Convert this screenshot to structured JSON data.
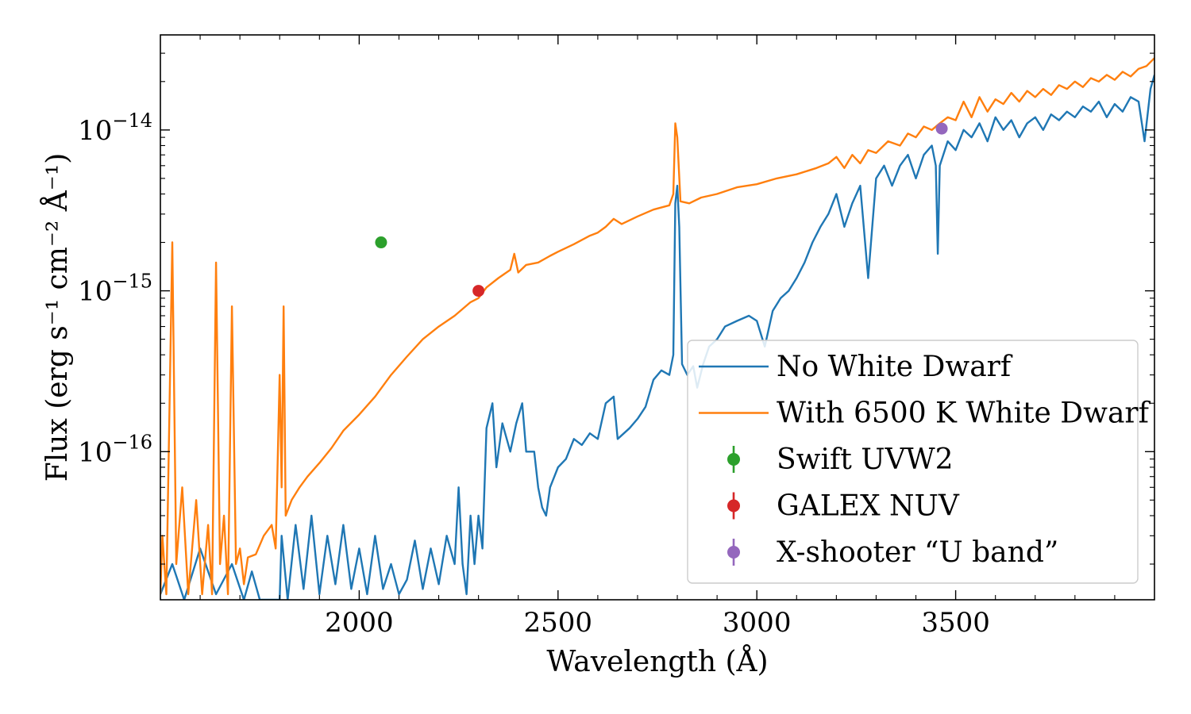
{
  "chart_data": {
    "type": "line",
    "xlabel": "Wavelength (Å)",
    "ylabel": "Flux (erg s⁻¹ cm⁻² Å⁻¹)",
    "xlim": [
      1500,
      4000
    ],
    "ylim": [
      1.2e-17,
      3.9e-14
    ],
    "yscale": "log",
    "grid": false,
    "legend_position": "lower right",
    "x_ticks": [
      {
        "value": 2000,
        "label": "2000"
      },
      {
        "value": 2500,
        "label": "2500"
      },
      {
        "value": 3000,
        "label": "3000"
      },
      {
        "value": 3500,
        "label": "3500"
      }
    ],
    "y_ticks": [
      {
        "value": 1e-16,
        "base": "10",
        "exp": "−16"
      },
      {
        "value": 1e-15,
        "base": "10",
        "exp": "−15"
      },
      {
        "value": 1e-14,
        "base": "10",
        "exp": "−14"
      }
    ],
    "series": [
      {
        "name": "No White Dwarf",
        "color": "#1f77b4",
        "kind": "line",
        "points": [
          [
            1500,
            1.3e-17
          ],
          [
            1530,
            2e-17
          ],
          [
            1560,
            1.2e-17
          ],
          [
            1600,
            2.5e-17
          ],
          [
            1640,
            1.3e-17
          ],
          [
            1680,
            2e-17
          ],
          [
            1710,
            1.2e-17
          ],
          [
            1730,
            1.8e-17
          ],
          [
            1750,
            1.2e-17
          ],
          [
            1800,
            1.2e-17
          ],
          [
            1805,
            3e-17
          ],
          [
            1820,
            1.2e-17
          ],
          [
            1840,
            3.5e-17
          ],
          [
            1860,
            1.4e-17
          ],
          [
            1880,
            4e-17
          ],
          [
            1900,
            1.3e-17
          ],
          [
            1920,
            3e-17
          ],
          [
            1940,
            1.5e-17
          ],
          [
            1960,
            3.5e-17
          ],
          [
            1980,
            1.4e-17
          ],
          [
            2000,
            2.5e-17
          ],
          [
            2020,
            1.3e-17
          ],
          [
            2040,
            3e-17
          ],
          [
            2060,
            1.4e-17
          ],
          [
            2080,
            2e-17
          ],
          [
            2100,
            1.3e-17
          ],
          [
            2120,
            1.6e-17
          ],
          [
            2140,
            2.8e-17
          ],
          [
            2160,
            1.4e-17
          ],
          [
            2180,
            2.5e-17
          ],
          [
            2200,
            1.5e-17
          ],
          [
            2220,
            3e-17
          ],
          [
            2240,
            2e-17
          ],
          [
            2250,
            6e-17
          ],
          [
            2260,
            2e-17
          ],
          [
            2270,
            1.3e-17
          ],
          [
            2280,
            4e-17
          ],
          [
            2290,
            2e-17
          ],
          [
            2300,
            4e-17
          ],
          [
            2310,
            2.5e-17
          ],
          [
            2320,
            1.4e-16
          ],
          [
            2335,
            2e-16
          ],
          [
            2345,
            8e-17
          ],
          [
            2360,
            1.5e-16
          ],
          [
            2380,
            1e-16
          ],
          [
            2395,
            1.5e-16
          ],
          [
            2410,
            2e-16
          ],
          [
            2420,
            1e-16
          ],
          [
            2440,
            1e-16
          ],
          [
            2450,
            6e-17
          ],
          [
            2460,
            4.5e-17
          ],
          [
            2470,
            4e-17
          ],
          [
            2480,
            6e-17
          ],
          [
            2500,
            8e-17
          ],
          [
            2520,
            9e-17
          ],
          [
            2540,
            1.2e-16
          ],
          [
            2560,
            1.1e-16
          ],
          [
            2580,
            1.3e-16
          ],
          [
            2600,
            1.2e-16
          ],
          [
            2620,
            2e-16
          ],
          [
            2640,
            2.2e-16
          ],
          [
            2650,
            1.2e-16
          ],
          [
            2680,
            1.4e-16
          ],
          [
            2700,
            1.6e-16
          ],
          [
            2720,
            1.9e-16
          ],
          [
            2740,
            2.8e-16
          ],
          [
            2760,
            3.2e-16
          ],
          [
            2780,
            3e-16
          ],
          [
            2790,
            4e-16
          ],
          [
            2795,
            3.5e-15
          ],
          [
            2800,
            4.5e-15
          ],
          [
            2805,
            2.5e-15
          ],
          [
            2812,
            3.5e-16
          ],
          [
            2825,
            3e-16
          ],
          [
            2840,
            3.4e-16
          ],
          [
            2850,
            2.5e-16
          ],
          [
            2865,
            3.5e-16
          ],
          [
            2880,
            4.5e-16
          ],
          [
            2900,
            5e-16
          ],
          [
            2920,
            6e-16
          ],
          [
            2950,
            6.5e-16
          ],
          [
            2980,
            7e-16
          ],
          [
            3000,
            6.5e-16
          ],
          [
            3020,
            4.5e-16
          ],
          [
            3040,
            7.5e-16
          ],
          [
            3060,
            9e-16
          ],
          [
            3080,
            1e-15
          ],
          [
            3100,
            1.2e-15
          ],
          [
            3120,
            1.5e-15
          ],
          [
            3140,
            2e-15
          ],
          [
            3160,
            2.5e-15
          ],
          [
            3180,
            3e-15
          ],
          [
            3200,
            4e-15
          ],
          [
            3220,
            2.5e-15
          ],
          [
            3240,
            3.5e-15
          ],
          [
            3260,
            4.5e-15
          ],
          [
            3280,
            1.2e-15
          ],
          [
            3300,
            5e-15
          ],
          [
            3320,
            6e-15
          ],
          [
            3340,
            4.5e-15
          ],
          [
            3360,
            6e-15
          ],
          [
            3380,
            7e-15
          ],
          [
            3400,
            5e-15
          ],
          [
            3420,
            7e-15
          ],
          [
            3440,
            8e-15
          ],
          [
            3450,
            6e-15
          ],
          [
            3455,
            1.7e-15
          ],
          [
            3460,
            6e-15
          ],
          [
            3480,
            8.5e-15
          ],
          [
            3500,
            7.5e-15
          ],
          [
            3520,
            1e-14
          ],
          [
            3540,
            9e-15
          ],
          [
            3560,
            1.1e-14
          ],
          [
            3580,
            8.5e-15
          ],
          [
            3600,
            1.2e-14
          ],
          [
            3620,
            1e-14
          ],
          [
            3640,
            1.15e-14
          ],
          [
            3660,
            9e-15
          ],
          [
            3680,
            1.1e-14
          ],
          [
            3700,
            1.2e-14
          ],
          [
            3720,
            1e-14
          ],
          [
            3740,
            1.25e-14
          ],
          [
            3760,
            1.15e-14
          ],
          [
            3780,
            1.3e-14
          ],
          [
            3800,
            1.2e-14
          ],
          [
            3820,
            1.4e-14
          ],
          [
            3840,
            1.3e-14
          ],
          [
            3860,
            1.5e-14
          ],
          [
            3880,
            1.2e-14
          ],
          [
            3900,
            1.45e-14
          ],
          [
            3920,
            1.3e-14
          ],
          [
            3940,
            1.6e-14
          ],
          [
            3960,
            1.5e-14
          ],
          [
            3975,
            8.5e-15
          ],
          [
            3990,
            1.8e-14
          ],
          [
            4000,
            2.2e-14
          ]
        ]
      },
      {
        "name": "With 6500 K White Dwarf",
        "color": "#ff7f0e",
        "kind": "line",
        "points": [
          [
            1500,
            1.3e-17
          ],
          [
            1505,
            3e-17
          ],
          [
            1515,
            1.3e-17
          ],
          [
            1530,
            2e-15
          ],
          [
            1540,
            2e-17
          ],
          [
            1555,
            6e-17
          ],
          [
            1570,
            1.3e-17
          ],
          [
            1590,
            5e-17
          ],
          [
            1605,
            1.3e-17
          ],
          [
            1620,
            3.5e-17
          ],
          [
            1630,
            1.3e-17
          ],
          [
            1640,
            1.5e-15
          ],
          [
            1650,
            2e-17
          ],
          [
            1660,
            4e-17
          ],
          [
            1670,
            1.3e-17
          ],
          [
            1680,
            8e-16
          ],
          [
            1690,
            2e-17
          ],
          [
            1700,
            2.5e-17
          ],
          [
            1710,
            1.5e-17
          ],
          [
            1720,
            2.2e-17
          ],
          [
            1740,
            2.3e-17
          ],
          [
            1760,
            3e-17
          ],
          [
            1780,
            3.5e-17
          ],
          [
            1790,
            2.5e-17
          ],
          [
            1800,
            3e-16
          ],
          [
            1805,
            6e-17
          ],
          [
            1810,
            8e-16
          ],
          [
            1815,
            4e-17
          ],
          [
            1830,
            5e-17
          ],
          [
            1850,
            6e-17
          ],
          [
            1870,
            7e-17
          ],
          [
            1900,
            8.5e-17
          ],
          [
            1930,
            1.05e-16
          ],
          [
            1960,
            1.35e-16
          ],
          [
            2000,
            1.7e-16
          ],
          [
            2040,
            2.2e-16
          ],
          [
            2080,
            3e-16
          ],
          [
            2120,
            3.9e-16
          ],
          [
            2160,
            5e-16
          ],
          [
            2200,
            6e-16
          ],
          [
            2240,
            7e-16
          ],
          [
            2280,
            8.5e-16
          ],
          [
            2300,
            9e-16
          ],
          [
            2320,
            1.05e-15
          ],
          [
            2350,
            1.2e-15
          ],
          [
            2380,
            1.35e-15
          ],
          [
            2390,
            1.7e-15
          ],
          [
            2400,
            1.3e-15
          ],
          [
            2420,
            1.45e-15
          ],
          [
            2450,
            1.5e-15
          ],
          [
            2480,
            1.65e-15
          ],
          [
            2500,
            1.75e-15
          ],
          [
            2540,
            1.95e-15
          ],
          [
            2580,
            2.2e-15
          ],
          [
            2600,
            2.3e-15
          ],
          [
            2620,
            2.5e-15
          ],
          [
            2640,
            2.8e-15
          ],
          [
            2660,
            2.6e-15
          ],
          [
            2700,
            2.9e-15
          ],
          [
            2740,
            3.2e-15
          ],
          [
            2780,
            3.4e-15
          ],
          [
            2790,
            4e-15
          ],
          [
            2795,
            1.1e-14
          ],
          [
            2800,
            9e-15
          ],
          [
            2808,
            3.6e-15
          ],
          [
            2830,
            3.5e-15
          ],
          [
            2860,
            3.8e-15
          ],
          [
            2900,
            4e-15
          ],
          [
            2950,
            4.4e-15
          ],
          [
            3000,
            4.6e-15
          ],
          [
            3050,
            5e-15
          ],
          [
            3100,
            5.3e-15
          ],
          [
            3150,
            5.8e-15
          ],
          [
            3180,
            6.2e-15
          ],
          [
            3200,
            6.8e-15
          ],
          [
            3220,
            5.8e-15
          ],
          [
            3240,
            7e-15
          ],
          [
            3260,
            6.2e-15
          ],
          [
            3280,
            7.5e-15
          ],
          [
            3300,
            7.2e-15
          ],
          [
            3330,
            8.5e-15
          ],
          [
            3360,
            8e-15
          ],
          [
            3380,
            9.5e-15
          ],
          [
            3400,
            9e-15
          ],
          [
            3420,
            1.05e-14
          ],
          [
            3440,
            1e-14
          ],
          [
            3460,
            1.1e-14
          ],
          [
            3480,
            1.2e-14
          ],
          [
            3500,
            1.15e-14
          ],
          [
            3520,
            1.5e-14
          ],
          [
            3540,
            1.2e-14
          ],
          [
            3560,
            1.6e-14
          ],
          [
            3580,
            1.3e-14
          ],
          [
            3600,
            1.55e-14
          ],
          [
            3620,
            1.45e-14
          ],
          [
            3640,
            1.7e-14
          ],
          [
            3660,
            1.5e-14
          ],
          [
            3680,
            1.75e-14
          ],
          [
            3700,
            1.6e-14
          ],
          [
            3720,
            1.8e-14
          ],
          [
            3740,
            1.65e-14
          ],
          [
            3760,
            1.9e-14
          ],
          [
            3780,
            1.8e-14
          ],
          [
            3800,
            2e-14
          ],
          [
            3820,
            1.85e-14
          ],
          [
            3840,
            2.1e-14
          ],
          [
            3860,
            2e-14
          ],
          [
            3880,
            2.2e-14
          ],
          [
            3900,
            2.05e-14
          ],
          [
            3920,
            2.3e-14
          ],
          [
            3940,
            2.15e-14
          ],
          [
            3960,
            2.4e-14
          ],
          [
            3980,
            2.5e-14
          ],
          [
            4000,
            2.8e-14
          ]
        ]
      },
      {
        "name": "Swift UVW2",
        "color": "#2ca02c",
        "kind": "errorbar",
        "points": [
          [
            2055,
            2e-15
          ]
        ]
      },
      {
        "name": "GALEX NUV",
        "color": "#d62728",
        "kind": "errorbar",
        "points": [
          [
            2300,
            1e-15
          ]
        ]
      },
      {
        "name": "X-shooter “U band”",
        "color": "#9467bd",
        "kind": "errorbar",
        "points": [
          [
            3465,
            1.02e-14
          ]
        ]
      }
    ]
  }
}
